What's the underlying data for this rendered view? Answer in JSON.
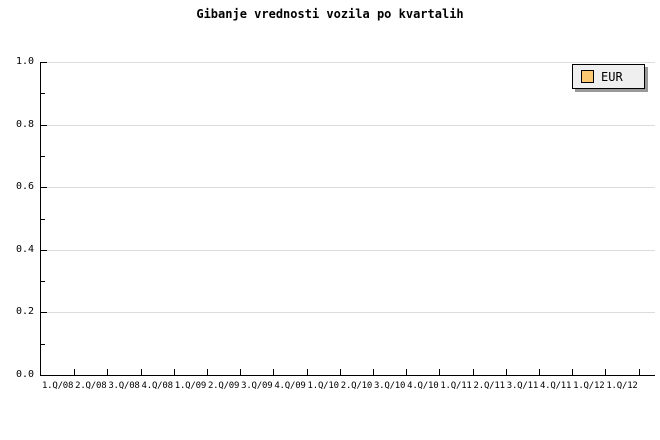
{
  "title": "Gibanje vrednosti vozila po kvartalih",
  "legend": {
    "position": "top-right",
    "items": [
      {
        "label": "EUR",
        "swatch_color": "#F9C870"
      }
    ]
  },
  "colors": {
    "background": "#FFFFFF",
    "text": "#000000",
    "axis": "#000000",
    "gridline": "#DCDCDC",
    "legend_background": "#EFEFEF",
    "legend_border": "#000000",
    "legend_shadow": "#999999",
    "series_eur": "#F9C870"
  },
  "chart_data": {
    "type": "line",
    "title": "Gibanje vrednosti vozila po kvartalih",
    "xlabel": "",
    "ylabel": "",
    "categories": [
      "1.Q/08",
      "2.Q/08",
      "3.Q/08",
      "4.Q/08",
      "1.Q/09",
      "2.Q/09",
      "3.Q/09",
      "4.Q/09",
      "1.Q/10",
      "2.Q/10",
      "3.Q/10",
      "4.Q/10",
      "1.Q/11",
      "2.Q/11",
      "3.Q/11",
      "4.Q/11",
      "1.Q/12",
      "1.Q/12"
    ],
    "series": [
      {
        "name": "EUR",
        "color": "#F9C870",
        "values": []
      }
    ],
    "ylim": [
      0.0,
      1.0
    ],
    "ytick_labels": [
      "0.0",
      "0.2",
      "0.4",
      "0.6",
      "0.8",
      "1.0"
    ],
    "ytick_step": 0.2,
    "ytick_minor_step": 0.1,
    "grid": "horizontal-major",
    "legend_position": "top-right"
  }
}
